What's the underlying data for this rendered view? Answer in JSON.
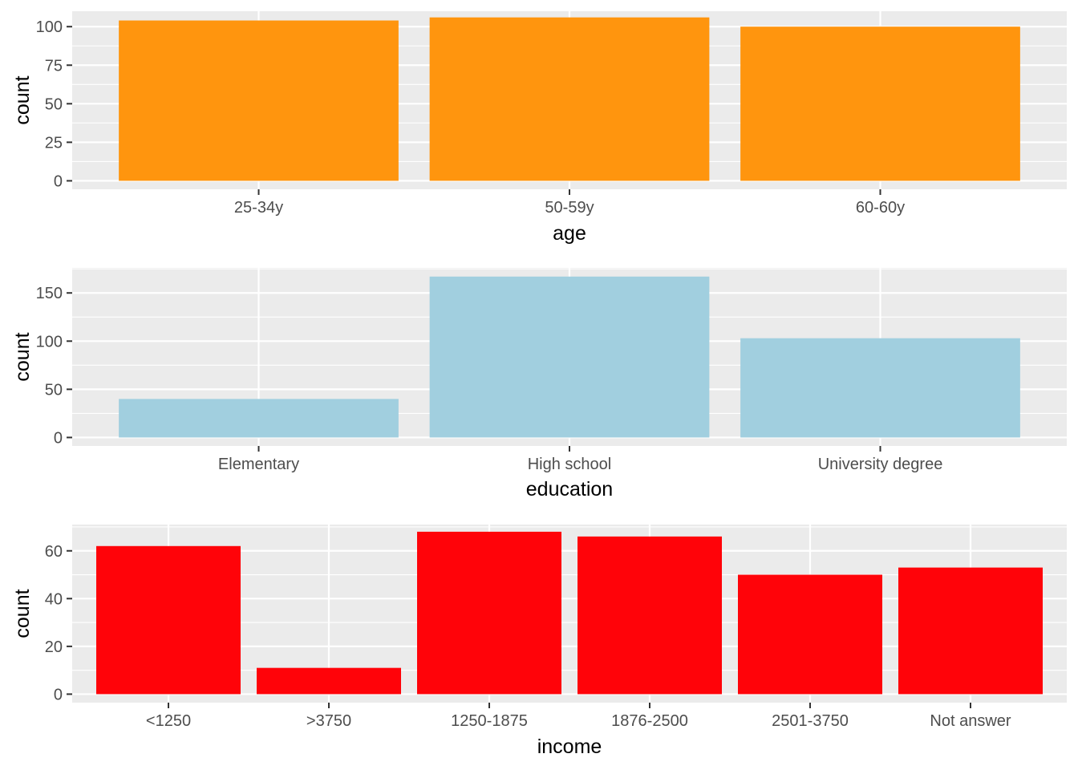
{
  "chart_data": [
    {
      "type": "bar",
      "xlabel": "age",
      "ylabel": "count",
      "categories": [
        "25-34y",
        "50-59y",
        "60-60y"
      ],
      "values": [
        104,
        106,
        100
      ],
      "ylim": [
        0,
        110
      ],
      "yticks": [
        0,
        25,
        50,
        75,
        100
      ],
      "ytick_labels": [
        "0",
        "25",
        "50",
        "75",
        "100"
      ],
      "color": "#FF950E",
      "grid": true
    },
    {
      "type": "bar",
      "xlabel": "education",
      "ylabel": "count",
      "categories": [
        "Elementary",
        "High school",
        "University degree"
      ],
      "values": [
        40,
        167,
        103
      ],
      "ylim": [
        0,
        176
      ],
      "yticks": [
        0,
        50,
        100,
        150
      ],
      "ytick_labels": [
        "0",
        "50",
        "100",
        "150"
      ],
      "color": "#A1CFDF",
      "grid": true
    },
    {
      "type": "bar",
      "xlabel": "income",
      "ylabel": "count",
      "categories": [
        "<1250",
        ">3750",
        "1250-1875",
        "1876-2500",
        "2501-3750",
        "Not answer"
      ],
      "values": [
        62,
        11,
        68,
        66,
        50,
        53
      ],
      "ylim": [
        0,
        71
      ],
      "yticks": [
        0,
        20,
        40,
        60
      ],
      "ytick_labels": [
        "0",
        "20",
        "40",
        "60"
      ],
      "color": "#FF0309",
      "grid": true
    }
  ]
}
